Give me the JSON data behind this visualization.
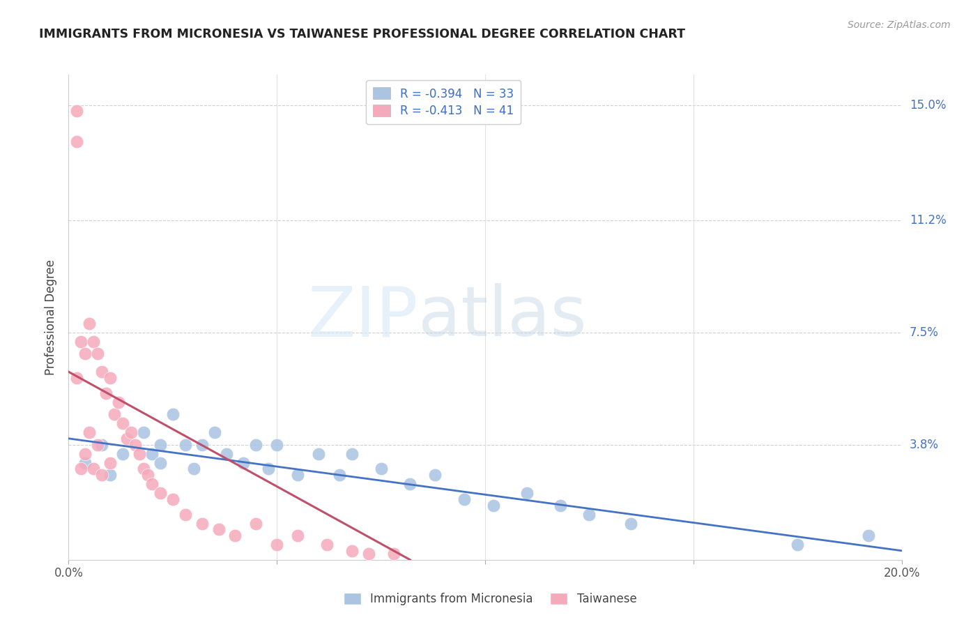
{
  "title": "IMMIGRANTS FROM MICRONESIA VS TAIWANESE PROFESSIONAL DEGREE CORRELATION CHART",
  "source": "Source: ZipAtlas.com",
  "ylabel": "Professional Degree",
  "xlim": [
    0.0,
    0.2
  ],
  "ylim": [
    0.0,
    0.16
  ],
  "ytick_labels_right": [
    "15.0%",
    "11.2%",
    "7.5%",
    "3.8%"
  ],
  "ytick_positions_right": [
    0.15,
    0.112,
    0.075,
    0.038
  ],
  "watermark_zip": "ZIP",
  "watermark_atlas": "atlas",
  "blue_color": "#aac4e2",
  "pink_color": "#f5aabb",
  "blue_line_color": "#4472c4",
  "pink_line_color": "#c0506a",
  "legend_label_blue": "Immigrants from Micronesia",
  "legend_label_pink": "Taiwanese",
  "blue_scatter_x": [
    0.004,
    0.008,
    0.01,
    0.013,
    0.018,
    0.02,
    0.022,
    0.022,
    0.025,
    0.028,
    0.03,
    0.032,
    0.035,
    0.038,
    0.042,
    0.045,
    0.048,
    0.05,
    0.055,
    0.06,
    0.065,
    0.068,
    0.075,
    0.082,
    0.088,
    0.095,
    0.102,
    0.11,
    0.118,
    0.125,
    0.135,
    0.175,
    0.192
  ],
  "blue_scatter_y": [
    0.032,
    0.038,
    0.028,
    0.035,
    0.042,
    0.035,
    0.038,
    0.032,
    0.048,
    0.038,
    0.03,
    0.038,
    0.042,
    0.035,
    0.032,
    0.038,
    0.03,
    0.038,
    0.028,
    0.035,
    0.028,
    0.035,
    0.03,
    0.025,
    0.028,
    0.02,
    0.018,
    0.022,
    0.018,
    0.015,
    0.012,
    0.005,
    0.008
  ],
  "pink_scatter_x": [
    0.002,
    0.002,
    0.002,
    0.003,
    0.003,
    0.004,
    0.004,
    0.005,
    0.005,
    0.006,
    0.006,
    0.007,
    0.007,
    0.008,
    0.008,
    0.009,
    0.01,
    0.01,
    0.011,
    0.012,
    0.013,
    0.014,
    0.015,
    0.016,
    0.017,
    0.018,
    0.019,
    0.02,
    0.022,
    0.025,
    0.028,
    0.032,
    0.036,
    0.04,
    0.045,
    0.05,
    0.055,
    0.062,
    0.068,
    0.072,
    0.078
  ],
  "pink_scatter_y": [
    0.148,
    0.138,
    0.06,
    0.072,
    0.03,
    0.068,
    0.035,
    0.078,
    0.042,
    0.072,
    0.03,
    0.068,
    0.038,
    0.062,
    0.028,
    0.055,
    0.06,
    0.032,
    0.048,
    0.052,
    0.045,
    0.04,
    0.042,
    0.038,
    0.035,
    0.03,
    0.028,
    0.025,
    0.022,
    0.02,
    0.015,
    0.012,
    0.01,
    0.008,
    0.012,
    0.005,
    0.008,
    0.005,
    0.003,
    0.002,
    0.002
  ],
  "blue_trend_x": [
    0.0,
    0.2
  ],
  "blue_trend_y": [
    0.04,
    0.003
  ],
  "pink_trend_x": [
    0.0,
    0.082
  ],
  "pink_trend_y": [
    0.062,
    0.0
  ]
}
